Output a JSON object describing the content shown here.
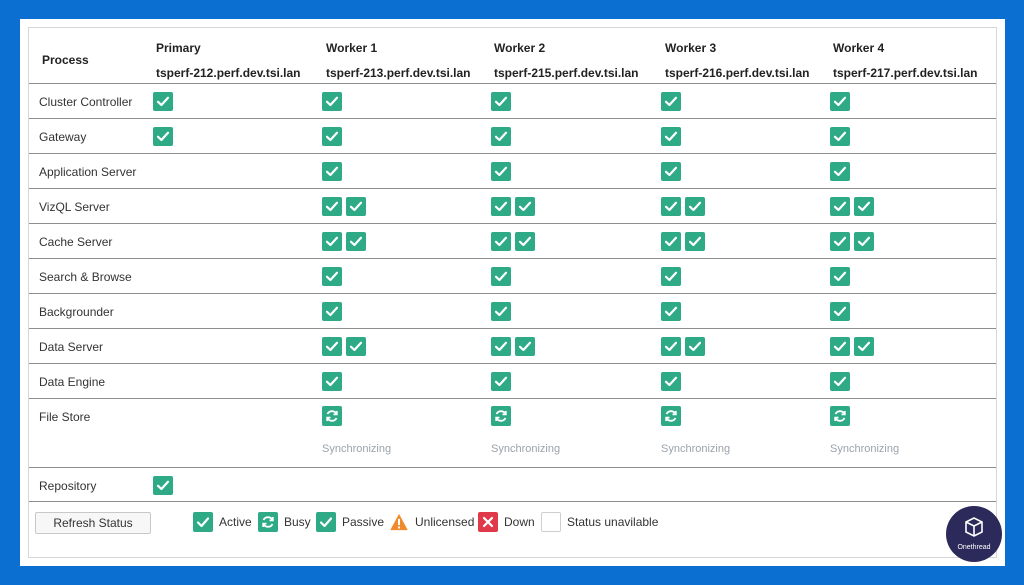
{
  "table": {
    "process_header": "Process",
    "columns": [
      {
        "name": "Primary",
        "host": "tsperf-212.perf.dev.tsi.lan"
      },
      {
        "name": "Worker 1",
        "host": "tsperf-213.perf.dev.tsi.lan"
      },
      {
        "name": "Worker 2",
        "host": "tsperf-215.perf.dev.tsi.lan"
      },
      {
        "name": "Worker 3",
        "host": "tsperf-216.perf.dev.tsi.lan"
      },
      {
        "name": "Worker 4",
        "host": "tsperf-217.perf.dev.tsi.lan"
      }
    ],
    "rows": [
      {
        "process": "Cluster Controller",
        "status": [
          [
            "active"
          ],
          [
            "active"
          ],
          [
            "active"
          ],
          [
            "active"
          ],
          [
            "active"
          ]
        ]
      },
      {
        "process": "Gateway",
        "status": [
          [
            "active"
          ],
          [
            "active"
          ],
          [
            "active"
          ],
          [
            "active"
          ],
          [
            "active"
          ]
        ]
      },
      {
        "process": "Application Server",
        "status": [
          [],
          [
            "active"
          ],
          [
            "active"
          ],
          [
            "active"
          ],
          [
            "active"
          ]
        ]
      },
      {
        "process": "VizQL Server",
        "status": [
          [],
          [
            "active",
            "active"
          ],
          [
            "active",
            "active"
          ],
          [
            "active",
            "active"
          ],
          [
            "active",
            "active"
          ]
        ]
      },
      {
        "process": "Cache Server",
        "status": [
          [],
          [
            "active",
            "active"
          ],
          [
            "active",
            "active"
          ],
          [
            "active",
            "active"
          ],
          [
            "active",
            "active"
          ]
        ]
      },
      {
        "process": "Search & Browse",
        "status": [
          [],
          [
            "active"
          ],
          [
            "active"
          ],
          [
            "active"
          ],
          [
            "active"
          ]
        ]
      },
      {
        "process": "Backgrounder",
        "status": [
          [],
          [
            "active"
          ],
          [
            "active"
          ],
          [
            "active"
          ],
          [
            "active"
          ]
        ]
      },
      {
        "process": "Data Server",
        "status": [
          [],
          [
            "active",
            "active"
          ],
          [
            "active",
            "active"
          ],
          [
            "active",
            "active"
          ],
          [
            "active",
            "active"
          ]
        ]
      },
      {
        "process": "Data Engine",
        "status": [
          [],
          [
            "active"
          ],
          [
            "active"
          ],
          [
            "active"
          ],
          [
            "active"
          ]
        ]
      },
      {
        "process": "File Store",
        "status": [
          [],
          [
            "sync"
          ],
          [
            "sync"
          ],
          [
            "sync"
          ],
          [
            "sync"
          ]
        ]
      },
      {
        "process": "Repository",
        "status": [
          [
            "active"
          ],
          [],
          [],
          [],
          []
        ]
      }
    ],
    "sync_label": "Synchronizing"
  },
  "footer": {
    "refresh_label": "Refresh Status",
    "legend": [
      {
        "key": "active",
        "label": "Active",
        "icon": "check-icon"
      },
      {
        "key": "busy",
        "label": "Busy",
        "icon": "sync-icon"
      },
      {
        "key": "passive",
        "label": "Passive",
        "icon": "check-icon"
      },
      {
        "key": "unlicensed",
        "label": "Unlicensed",
        "icon": "warning-icon"
      },
      {
        "key": "down",
        "label": "Down",
        "icon": "x-icon"
      },
      {
        "key": "unavailable",
        "label": "Status unavilable",
        "icon": "empty-box-icon"
      }
    ]
  },
  "logo": {
    "text": "Onethread"
  },
  "colors": {
    "active": "#2eaa86",
    "busy": "#2eaa86",
    "passive": "#2eaa86",
    "unlicensed": "#f08a2c",
    "down": "#e03a4a",
    "background": "#0a6fd1"
  }
}
